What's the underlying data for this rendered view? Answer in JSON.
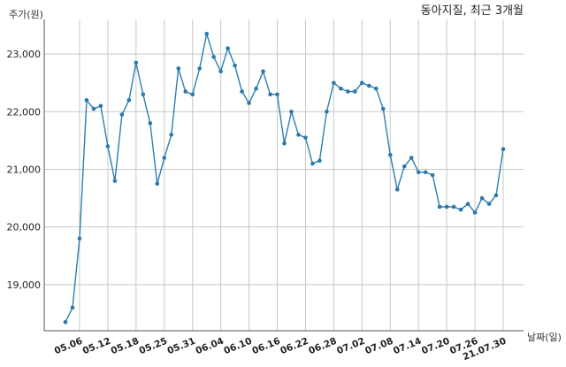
{
  "chart_data": {
    "type": "line",
    "title": "동아지질, 최근 3개월",
    "ylabel": "주가(원)",
    "xlabel": "날짜(일)",
    "ylim": [
      18200,
      23600
    ],
    "yticks": [
      19000,
      20000,
      21000,
      22000,
      23000
    ],
    "ytick_labels": [
      "19,000",
      "20,000",
      "21,000",
      "22,000",
      "23,000"
    ],
    "grid": true,
    "x_tick_labels": [
      "05.06",
      "05.12",
      "05.18",
      "05.25",
      "05.31",
      "06.04",
      "06.10",
      "06.16",
      "06.22",
      "06.28",
      "07.02",
      "07.08",
      "07.14",
      "07.20",
      "07.26",
      "21.07.30"
    ],
    "x_tick_index": [
      2,
      6,
      10,
      14,
      18,
      22,
      26,
      30,
      34,
      38,
      42,
      46,
      50,
      54,
      58,
      62
    ],
    "series": [
      {
        "values": [
          18350,
          18600,
          19800,
          22200,
          22050,
          22100,
          21400,
          20800,
          21950,
          22200,
          22850,
          22300,
          21800,
          20750,
          21200,
          21600,
          22750,
          22350,
          22300,
          22750,
          23350,
          22950,
          22700,
          23100,
          22800,
          22350,
          22150,
          22400,
          22700,
          22300,
          22300,
          21450,
          22000,
          21600,
          21550,
          21100,
          21150,
          22000,
          22500,
          22400,
          22350,
          22350,
          22500,
          22450,
          22400,
          22050,
          21250,
          20650,
          21050,
          21200,
          20950,
          20950,
          20900,
          20350,
          20350,
          20350,
          20300,
          20400,
          20250,
          20500,
          20400,
          20550,
          21350
        ]
      }
    ]
  }
}
